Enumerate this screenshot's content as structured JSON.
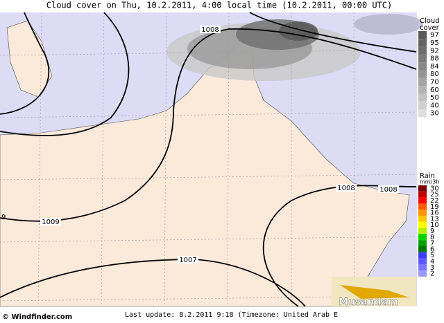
{
  "header": {
    "title": "Cloud cover on Thu, 10.2.2011, 4:00 local time (10.2.2011, 00:00 UTC)"
  },
  "map": {
    "isobar_labels": [
      "1008",
      "1009",
      "9",
      "1008",
      "1008",
      "1007"
    ],
    "logo": "Musandam"
  },
  "cloud_legend": {
    "title": [
      "Cloud",
      "cover"
    ],
    "items": [
      {
        "label": "97",
        "color": "#5a5a5a"
      },
      {
        "label": "95",
        "color": "#646464"
      },
      {
        "label": "92",
        "color": "#6e6e6e"
      },
      {
        "label": "88",
        "color": "#7a7a7a"
      },
      {
        "label": "84",
        "color": "#878787"
      },
      {
        "label": "80",
        "color": "#959595"
      },
      {
        "label": "70",
        "color": "#a4a4a4"
      },
      {
        "label": "60",
        "color": "#b3b3b3"
      },
      {
        "label": "50",
        "color": "#c2c2c2"
      },
      {
        "label": "40",
        "color": "#d0d0d0"
      },
      {
        "label": "30",
        "color": "#dedede"
      }
    ]
  },
  "rain_legend": {
    "title": [
      "Rain",
      "mm/3h"
    ],
    "items": [
      {
        "label": "30",
        "color": "#7a0000"
      },
      {
        "label": "25",
        "color": "#c00000"
      },
      {
        "label": "22",
        "color": "#ff0000"
      },
      {
        "label": "19",
        "color": "#ff5a00"
      },
      {
        "label": "16",
        "color": "#ff9600"
      },
      {
        "label": "13",
        "color": "#ffc800"
      },
      {
        "label": "10",
        "color": "#ffff00"
      },
      {
        "label": "9",
        "color": "#b4f000"
      },
      {
        "label": "8",
        "color": "#00d200"
      },
      {
        "label": "7",
        "color": "#00a000"
      },
      {
        "label": "6",
        "color": "#007800"
      },
      {
        "label": "5",
        "color": "#3c3cff"
      },
      {
        "label": "4",
        "color": "#5a5aff"
      },
      {
        "label": "3",
        "color": "#7878ff"
      },
      {
        "label": "2",
        "color": "#9a9aff"
      }
    ]
  },
  "footer": {
    "copyright": "© Windfinder.com",
    "update": "Last update: 8.2.2011 9:18 (Timezone: United Arab E"
  }
}
